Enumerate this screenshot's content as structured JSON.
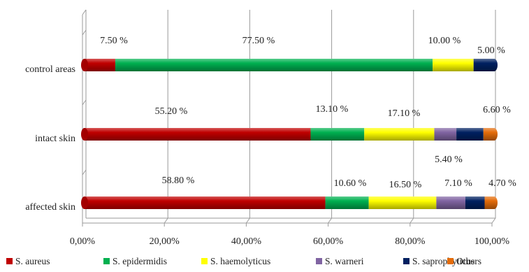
{
  "chart_data": {
    "type": "bar",
    "orientation": "horizontal",
    "stacked": "percent",
    "categories": [
      "control areas",
      "intact skin",
      "affected skin"
    ],
    "x_ticks": [
      "0,00%",
      "20,00%",
      "40,00%",
      "60,00%",
      "80,00%",
      "100,00%"
    ],
    "xlim": [
      0,
      100
    ],
    "grid": true,
    "legend_position": "bottom",
    "series": [
      {
        "name": "S. aureus",
        "color": "#c00000",
        "values": [
          7.5,
          55.2,
          58.8
        ],
        "labels": [
          "7.50 %",
          "55.20 %",
          "58.80 %"
        ]
      },
      {
        "name": "S. epidermidis",
        "color": "#00b050",
        "values": [
          77.5,
          13.1,
          10.6
        ],
        "labels": [
          "77.50 %",
          "13.10 %",
          "10.60 %"
        ]
      },
      {
        "name": "S. haemolyticus",
        "color": "#ffff00",
        "values": [
          10.0,
          17.1,
          16.5
        ],
        "labels": [
          "10.00 %",
          "17.10 %",
          "16.50 %"
        ]
      },
      {
        "name": "S. warneri",
        "color": "#8064a2",
        "values": [
          0,
          5.4,
          7.1
        ],
        "labels": [
          "",
          "5.40 %",
          "7.10 %"
        ]
      },
      {
        "name": "S. saprophyticus",
        "color": "#002060",
        "values": [
          5.0,
          6.6,
          4.7
        ],
        "labels": [
          "5.00 %",
          "6.60 %",
          "4.70 %"
        ]
      },
      {
        "name": "Others",
        "color": "#e46c0a",
        "values": [
          0,
          2.6,
          2.3
        ],
        "labels": [
          "",
          "",
          ""
        ]
      }
    ]
  }
}
